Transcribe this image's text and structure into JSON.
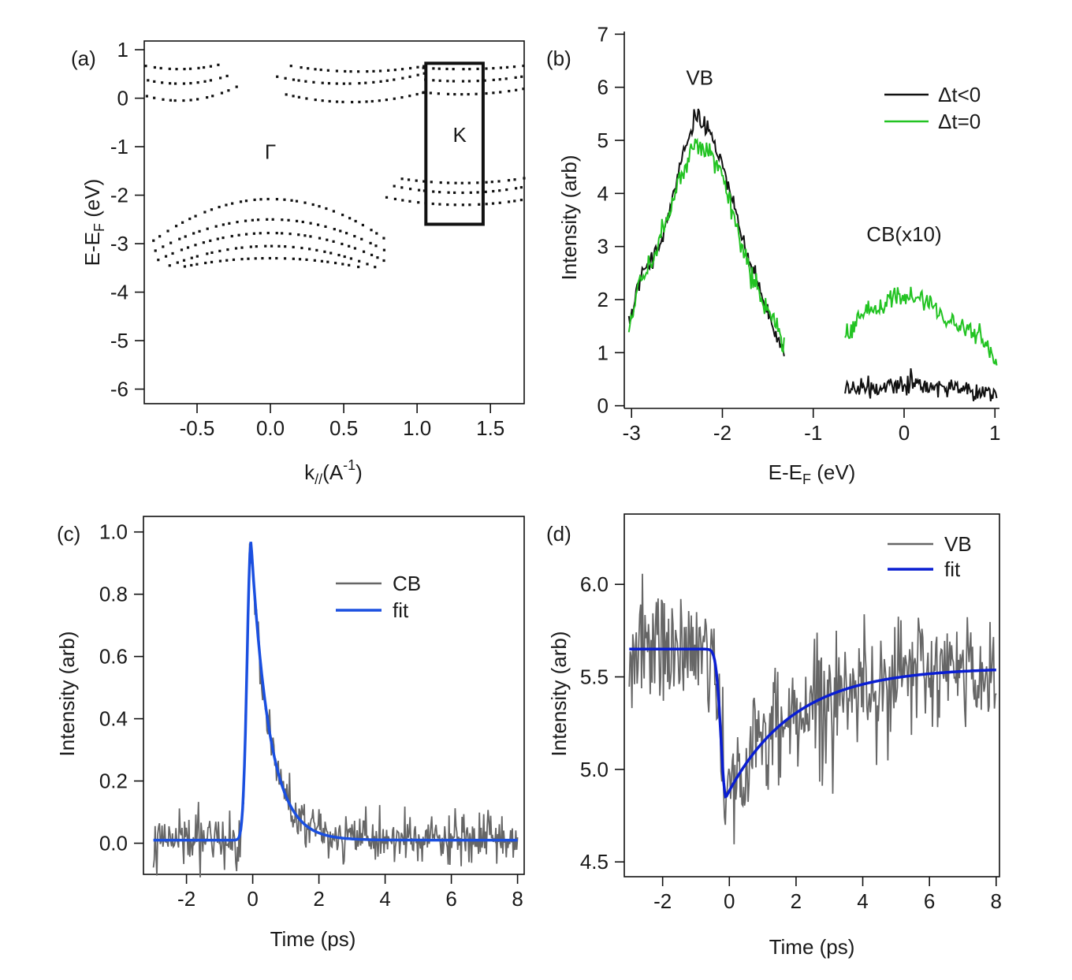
{
  "colors": {
    "black": "#111111",
    "green": "#22c322",
    "gray": "#666666",
    "blue_c": "#1a4fe0",
    "blue_d": "#0a1ed2"
  },
  "chart_data": [
    {
      "panel": "(a)",
      "type": "scatter",
      "xlabel": "k_//(A^-1)",
      "xlabel_main": "k",
      "xlabel_sub": "//",
      "xlabel_rest": "(A",
      "xlabel_sup": "-1",
      "xlabel_end": ")",
      "ylabel_main": "E-E",
      "ylabel_sub": "F",
      "ylabel_rest": " (eV)",
      "xlim": [
        -0.86,
        1.73
      ],
      "ylim": [
        -6.3,
        1.18
      ],
      "xticks": [
        -0.5,
        0.0,
        0.5,
        1.0,
        1.5
      ],
      "xtick_labels": [
        "-0.5",
        "0.0",
        "0.5",
        "1.0",
        "1.5"
      ],
      "yticks": [
        1,
        0,
        -1,
        -2,
        -3,
        -4,
        -5,
        -6
      ],
      "ytick_labels": [
        "1",
        "0",
        "-1",
        "-2",
        "-3",
        "-4",
        "-5",
        "-6"
      ],
      "annotations": [
        {
          "text": "Γ",
          "x": 0.0,
          "y": -1.25
        },
        {
          "text": "K",
          "x": 1.29,
          "y": -0.9
        }
      ],
      "box": {
        "x0": 1.06,
        "x1": 1.45,
        "y0": -2.6,
        "y1": 0.72
      },
      "band_groups": [
        {
          "kind": "valence",
          "curves": [
            {
              "center": 0.0,
              "top": -2.08,
              "curv": 1.35,
              "range": [
                -0.8,
                0.78
              ]
            },
            {
              "center": 0.0,
              "top": -2.5,
              "curv": 1.05,
              "range": [
                -0.78,
                0.78
              ]
            },
            {
              "center": 0.0,
              "top": -2.78,
              "curv": 0.95,
              "range": [
                -0.76,
                0.78
              ]
            },
            {
              "center": 0.0,
              "top": -3.05,
              "curv": 0.85,
              "range": [
                -0.74,
                0.76
              ]
            },
            {
              "center": 0.0,
              "top": -3.3,
              "curv": 0.5,
              "range": [
                -0.74,
                0.74
              ]
            }
          ]
        },
        {
          "kind": "valence-K",
          "curves": [
            {
              "center": 1.3,
              "top": -1.75,
              "curv": -0.9,
              "range": [
                0.9,
                1.72
              ]
            },
            {
              "center": 1.3,
              "top": -1.95,
              "curv": -1.1,
              "range": [
                0.85,
                1.72
              ]
            },
            {
              "center": 1.3,
              "top": -2.2,
              "curv": -1.0,
              "range": [
                0.8,
                1.72
              ]
            }
          ]
        },
        {
          "kind": "conduction-G",
          "curves": [
            {
              "center": -0.62,
              "top": -0.05,
              "curv": 7.5,
              "range": [
                -0.84,
                -0.24
              ]
            },
            {
              "center": -0.62,
              "top": 0.3,
              "curv": 6.0,
              "range": [
                -0.84,
                -0.3
              ]
            },
            {
              "center": -0.62,
              "top": 0.6,
              "curv": 5.0,
              "range": [
                -0.84,
                -0.35
              ]
            }
          ]
        },
        {
          "kind": "conduction-M",
          "curves": [
            {
              "center": 0.55,
              "top": -0.08,
              "curv": 3.2,
              "range": [
                0.1,
                1.05
              ]
            },
            {
              "center": 0.5,
              "top": 0.3,
              "curv": 2.8,
              "range": [
                0.05,
                1.05
              ]
            },
            {
              "center": 0.6,
              "top": 0.55,
              "curv": 2.2,
              "range": [
                0.15,
                1.05
              ]
            }
          ]
        },
        {
          "kind": "conduction-K",
          "curves": [
            {
              "center": 1.3,
              "top": 0.08,
              "curv": 2.5,
              "range": [
                1.05,
                1.72
              ]
            },
            {
              "center": 1.3,
              "top": 0.35,
              "curv": 2.2,
              "range": [
                1.05,
                1.72
              ]
            },
            {
              "center": 1.3,
              "top": 0.6,
              "curv": 1.5,
              "range": [
                1.05,
                1.72
              ]
            }
          ]
        }
      ]
    },
    {
      "panel": "(b)",
      "type": "line",
      "xlabel_main": "E-E",
      "xlabel_sub": "F",
      "xlabel_rest": " (eV)",
      "ylabel": "Intensity (arb)",
      "xlim": [
        -3.08,
        1.05
      ],
      "ylim": [
        -0.05,
        7.05
      ],
      "xticks": [
        -3,
        -2,
        -1,
        0,
        1
      ],
      "xtick_labels": [
        "-3",
        "-2",
        "-1",
        "0",
        "1"
      ],
      "yticks": [
        0,
        1,
        2,
        3,
        4,
        5,
        6,
        7
      ],
      "ytick_labels": [
        "0",
        "1",
        "2",
        "3",
        "4",
        "5",
        "6",
        "7"
      ],
      "legend": [
        "Δt<0",
        "Δt=0"
      ],
      "legend_position": "top-right",
      "annotations": [
        {
          "text": "VB",
          "x": -2.25,
          "y": 6.05
        },
        {
          "text": "CB(x10)",
          "x": 0.0,
          "y": 3.1
        }
      ],
      "series": [
        {
          "name": "Δt<0",
          "color": "black",
          "vb_points": [
            [
              -3.03,
              1.5
            ],
            [
              -2.9,
              2.45
            ],
            [
              -2.75,
              2.8
            ],
            [
              -2.6,
              3.55
            ],
            [
              -2.45,
              4.6
            ],
            [
              -2.3,
              5.45
            ],
            [
              -2.15,
              5.25
            ],
            [
              -2.0,
              4.55
            ],
            [
              -1.85,
              3.6
            ],
            [
              -1.7,
              2.7
            ],
            [
              -1.55,
              2.0
            ],
            [
              -1.42,
              1.35
            ],
            [
              -1.32,
              1.0
            ]
          ],
          "cb_points": [
            [
              -0.65,
              0.3
            ],
            [
              -0.5,
              0.3
            ],
            [
              -0.3,
              0.35
            ],
            [
              -0.1,
              0.4
            ],
            [
              0.1,
              0.4
            ],
            [
              0.3,
              0.35
            ],
            [
              0.5,
              0.35
            ],
            [
              0.7,
              0.28
            ],
            [
              0.9,
              0.28
            ],
            [
              1.02,
              0.22
            ]
          ],
          "noise": 0.08
        },
        {
          "name": "Δt=0",
          "color": "green",
          "vb_points": [
            [
              -3.03,
              1.45
            ],
            [
              -2.9,
              2.4
            ],
            [
              -2.75,
              2.8
            ],
            [
              -2.6,
              3.5
            ],
            [
              -2.45,
              4.4
            ],
            [
              -2.3,
              4.95
            ],
            [
              -2.15,
              4.85
            ],
            [
              -2.0,
              4.25
            ],
            [
              -1.85,
              3.4
            ],
            [
              -1.7,
              2.6
            ],
            [
              -1.55,
              1.95
            ],
            [
              -1.42,
              1.45
            ],
            [
              -1.32,
              1.15
            ]
          ],
          "cb_points": [
            [
              -0.65,
              1.25
            ],
            [
              -0.5,
              1.65
            ],
            [
              -0.3,
              1.85
            ],
            [
              -0.1,
              2.05
            ],
            [
              0.1,
              2.05
            ],
            [
              0.3,
              1.9
            ],
            [
              0.5,
              1.6
            ],
            [
              0.7,
              1.45
            ],
            [
              0.9,
              1.15
            ],
            [
              1.02,
              0.7
            ]
          ],
          "noise": 0.1
        }
      ]
    },
    {
      "panel": "(c)",
      "type": "line",
      "xlabel": "Time (ps)",
      "ylabel": "Intensity (arb)",
      "xlim": [
        -3.3,
        8.2
      ],
      "ylim": [
        -0.1,
        1.05
      ],
      "xticks": [
        -2,
        0,
        2,
        4,
        6,
        8
      ],
      "xtick_labels": [
        "-2",
        "0",
        "2",
        "4",
        "6",
        "8"
      ],
      "yticks": [
        0.0,
        0.2,
        0.4,
        0.6,
        0.8,
        1.0
      ],
      "ytick_labels": [
        "0.0",
        "0.2",
        "0.4",
        "0.6",
        "0.8",
        "1.0"
      ],
      "legend": [
        "CB",
        "fit"
      ],
      "legend_position": "top-right",
      "model": {
        "baseline": 0.01,
        "amplitude": 0.96,
        "t0": -0.05,
        "rise_sigma": 0.12,
        "tau": 0.55
      },
      "series": [
        {
          "name": "CB",
          "color": "gray",
          "t_range": [
            -3.0,
            8.0
          ],
          "noise": 0.04
        },
        {
          "name": "fit",
          "color": "blue_c",
          "t_range": [
            -3.0,
            8.0
          ]
        }
      ]
    },
    {
      "panel": "(d)",
      "type": "line",
      "xlabel": "Time (ps)",
      "ylabel": "Intensity (arb)",
      "xlim": [
        -3.15,
        8.1
      ],
      "ylim": [
        4.42,
        6.38
      ],
      "xticks": [
        -2,
        0,
        2,
        4,
        6,
        8
      ],
      "xtick_labels": [
        "-2",
        "0",
        "2",
        "4",
        "6",
        "8"
      ],
      "yticks": [
        4.5,
        5.0,
        5.5,
        6.0
      ],
      "ytick_labels": [
        "4.5",
        "5.0",
        "5.5",
        "6.0"
      ],
      "legend": [
        "VB",
        "fit"
      ],
      "legend_position": "top-right",
      "model": {
        "baseline": 5.65,
        "dip": -0.8,
        "t0": -0.1,
        "rise_sigma": 0.15,
        "tau": 2.0,
        "recovery_offset": 0.1
      },
      "series": [
        {
          "name": "VB",
          "color": "gray",
          "t_range": [
            -3.0,
            8.0
          ],
          "noise": 0.16
        },
        {
          "name": "fit",
          "color": "blue_d",
          "t_range": [
            -3.0,
            8.0
          ]
        }
      ]
    }
  ]
}
